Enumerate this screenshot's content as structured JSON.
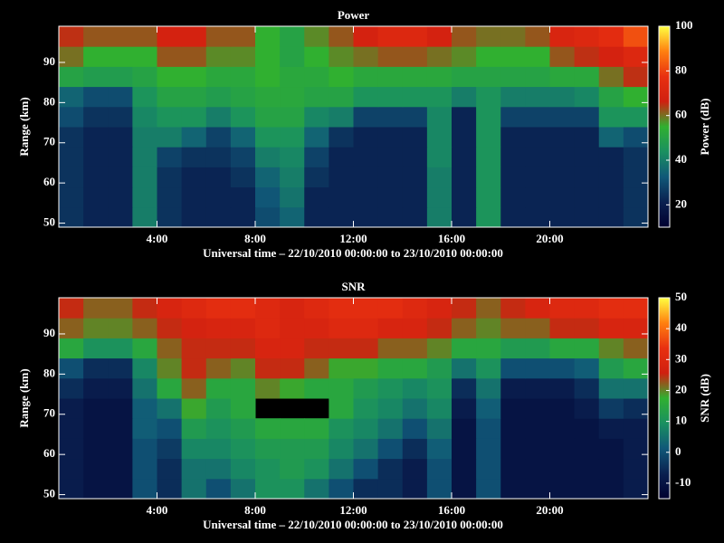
{
  "chart_data": [
    {
      "type": "heatmap",
      "title": "Power",
      "xlabel": "Universal time – 22/10/2010 00:00:00 to 23/10/2010 00:00:00",
      "ylabel": "Range (km)",
      "colorbar_label": "Power (dB)",
      "x": [
        0,
        1,
        2,
        3,
        4,
        5,
        6,
        7,
        8,
        9,
        10,
        11,
        12,
        13,
        14,
        15,
        16,
        17,
        18,
        19,
        20,
        21,
        22,
        23
      ],
      "y": [
        49,
        54,
        59,
        64,
        69,
        74,
        79,
        84,
        89,
        94
      ],
      "xlim": [
        0,
        24
      ],
      "ylim": [
        49,
        99
      ],
      "xticks": [
        {
          "value": 4,
          "label": "4:00"
        },
        {
          "value": 8,
          "label": "8:00"
        },
        {
          "value": 12,
          "label": "12:00"
        },
        {
          "value": 16,
          "label": "16:00"
        },
        {
          "value": 20,
          "label": "20:00"
        }
      ],
      "yticks": [
        50,
        60,
        70,
        80,
        90
      ],
      "zlim": [
        10,
        100
      ],
      "zticks": [
        20,
        40,
        60,
        80,
        100
      ],
      "colors": [
        "#000030",
        "#0a2050",
        "#105878",
        "#1a9060",
        "#30b030",
        "#d02010",
        "#e83010",
        "#ff8010",
        "#ffff40"
      ],
      "z": [
        [
          25,
          22,
          22,
          40,
          25,
          22,
          22,
          22,
          30,
          35,
          22,
          22,
          22,
          22,
          22,
          40,
          22,
          45,
          22,
          22,
          22,
          22,
          22,
          25
        ],
        [
          25,
          22,
          22,
          40,
          25,
          22,
          22,
          22,
          32,
          38,
          22,
          22,
          22,
          22,
          22,
          40,
          22,
          45,
          22,
          22,
          22,
          22,
          22,
          25
        ],
        [
          25,
          22,
          22,
          40,
          25,
          22,
          22,
          25,
          35,
          40,
          25,
          22,
          22,
          22,
          22,
          40,
          22,
          45,
          22,
          22,
          22,
          22,
          22,
          25
        ],
        [
          25,
          22,
          22,
          40,
          28,
          25,
          25,
          28,
          40,
          42,
          28,
          22,
          22,
          22,
          22,
          42,
          22,
          45,
          22,
          22,
          22,
          22,
          22,
          25
        ],
        [
          25,
          22,
          22,
          40,
          40,
          35,
          28,
          35,
          45,
          45,
          35,
          25,
          22,
          22,
          22,
          42,
          22,
          45,
          22,
          22,
          22,
          22,
          35,
          30
        ],
        [
          30,
          25,
          25,
          42,
          45,
          45,
          40,
          45,
          50,
          50,
          42,
          40,
          28,
          28,
          28,
          42,
          22,
          45,
          28,
          28,
          28,
          28,
          45,
          45
        ],
        [
          35,
          30,
          30,
          45,
          50,
          50,
          48,
          50,
          52,
          52,
          50,
          50,
          45,
          45,
          45,
          45,
          40,
          45,
          40,
          40,
          40,
          42,
          50,
          55
        ],
        [
          50,
          48,
          48,
          50,
          55,
          55,
          52,
          52,
          55,
          52,
          52,
          55,
          52,
          52,
          52,
          52,
          50,
          50,
          50,
          50,
          52,
          52,
          60,
          65
        ],
        [
          60,
          55,
          55,
          55,
          62,
          62,
          58,
          58,
          55,
          50,
          55,
          58,
          60,
          62,
          62,
          60,
          58,
          55,
          55,
          55,
          62,
          65,
          68,
          72
        ],
        [
          65,
          62,
          62,
          62,
          68,
          68,
          62,
          62,
          55,
          50,
          58,
          62,
          68,
          72,
          72,
          68,
          62,
          60,
          60,
          62,
          70,
          72,
          75,
          82
        ]
      ]
    },
    {
      "type": "heatmap",
      "title": "SNR",
      "xlabel": "Universal time – 22/10/2010 00:00:00 to 23/10/2010 00:00:00",
      "ylabel": "Range (km)",
      "colorbar_label": "SNR (dB)",
      "x": [
        0,
        1,
        2,
        3,
        4,
        5,
        6,
        7,
        8,
        9,
        10,
        11,
        12,
        13,
        14,
        15,
        16,
        17,
        18,
        19,
        20,
        21,
        22,
        23
      ],
      "y": [
        49,
        54,
        59,
        64,
        69,
        74,
        79,
        84,
        89,
        94
      ],
      "xlim": [
        0,
        24
      ],
      "ylim": [
        49,
        99
      ],
      "xticks": [
        {
          "value": 4,
          "label": "4:00"
        },
        {
          "value": 8,
          "label": "8:00"
        },
        {
          "value": 12,
          "label": "12:00"
        },
        {
          "value": 16,
          "label": "16:00"
        },
        {
          "value": 20,
          "label": "20:00"
        }
      ],
      "yticks": [
        50,
        60,
        70,
        80,
        90
      ],
      "zlim": [
        -15,
        50
      ],
      "zticks": [
        -10,
        0,
        10,
        20,
        30,
        40,
        50
      ],
      "colors": [
        "#000030",
        "#0a2050",
        "#105878",
        "#1a9060",
        "#30b030",
        "#d02010",
        "#e83010",
        "#ff8010",
        "#ffff40"
      ],
      "z": [
        [
          -8,
          -10,
          -10,
          0,
          -5,
          5,
          0,
          5,
          10,
          10,
          5,
          0,
          -5,
          -5,
          -8,
          0,
          -10,
          0,
          -10,
          -10,
          -10,
          -10,
          -10,
          -8
        ],
        [
          -8,
          -10,
          -10,
          0,
          -5,
          5,
          5,
          8,
          10,
          12,
          10,
          5,
          0,
          -5,
          -8,
          0,
          -10,
          0,
          -10,
          -10,
          -10,
          -10,
          -10,
          -8
        ],
        [
          -8,
          -10,
          -10,
          0,
          -3,
          8,
          8,
          10,
          12,
          12,
          12,
          8,
          5,
          0,
          -5,
          2,
          -10,
          0,
          -10,
          -10,
          -10,
          -10,
          -10,
          -8
        ],
        [
          -8,
          -10,
          -10,
          2,
          0,
          12,
          10,
          12,
          15,
          15,
          15,
          10,
          8,
          5,
          0,
          5,
          -10,
          0,
          -10,
          -10,
          -10,
          -10,
          -8,
          -8
        ],
        [
          -8,
          -10,
          -10,
          2,
          5,
          18,
          12,
          15,
          null,
          null,
          null,
          15,
          10,
          8,
          5,
          8,
          -8,
          2,
          -10,
          -10,
          -10,
          -8,
          -3,
          -5
        ],
        [
          -5,
          -8,
          -8,
          5,
          15,
          22,
          15,
          15,
          20,
          18,
          15,
          15,
          12,
          10,
          8,
          10,
          -5,
          5,
          -8,
          -8,
          -8,
          -5,
          5,
          5
        ],
        [
          0,
          -5,
          -5,
          8,
          20,
          25,
          22,
          20,
          25,
          25,
          22,
          18,
          18,
          15,
          15,
          12,
          5,
          10,
          0,
          0,
          0,
          2,
          12,
          15
        ],
        [
          15,
          10,
          10,
          15,
          22,
          25,
          25,
          25,
          28,
          28,
          25,
          25,
          25,
          22,
          22,
          20,
          15,
          15,
          12,
          12,
          15,
          15,
          20,
          22
        ],
        [
          22,
          20,
          20,
          22,
          25,
          27,
          28,
          28,
          30,
          28,
          28,
          30,
          30,
          28,
          28,
          25,
          22,
          20,
          22,
          22,
          25,
          25,
          28,
          28
        ],
        [
          25,
          22,
          22,
          25,
          28,
          30,
          32,
          32,
          30,
          28,
          30,
          32,
          32,
          32,
          30,
          28,
          25,
          22,
          25,
          28,
          30,
          30,
          32,
          32
        ]
      ]
    }
  ]
}
